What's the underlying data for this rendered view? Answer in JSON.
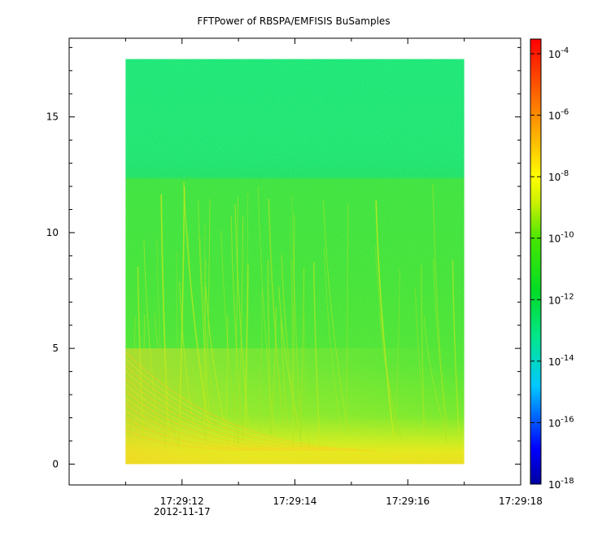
{
  "chart_data": {
    "type": "heatmap",
    "title": "FFTPower of RBSPA/EMFISIS  BuSamples",
    "xlabel": "",
    "ylabel": "",
    "x_axis": {
      "ticks": [
        {
          "label": "17:29:12",
          "value": 12
        },
        {
          "label": "17:29:14",
          "value": 14
        },
        {
          "label": "17:29:16",
          "value": 16
        },
        {
          "label": "17:29:18",
          "value": 18
        }
      ],
      "date_label": "2012-11-17",
      "range": [
        10.0,
        18.0
      ],
      "minor_step": 1
    },
    "y_axis": {
      "ticks": [
        {
          "label": "0",
          "value": 0
        },
        {
          "label": "5",
          "value": 5
        },
        {
          "label": "10",
          "value": 10
        },
        {
          "label": "15",
          "value": 15
        }
      ],
      "range": [
        -0.9,
        18.4
      ],
      "minor_step": 1
    },
    "data_extent": {
      "x": [
        11.0,
        17.0
      ],
      "y": [
        0,
        17.5
      ]
    },
    "colorbar": {
      "scale": "log",
      "range": [
        1e-18,
        0.0003
      ],
      "ticks": [
        {
          "base": "10",
          "exp": "-4",
          "value": -4
        },
        {
          "base": "10",
          "exp": "-6",
          "value": -6
        },
        {
          "base": "10",
          "exp": "-8",
          "value": -8
        },
        {
          "base": "10",
          "exp": "-10",
          "value": -10
        },
        {
          "base": "10",
          "exp": "-12",
          "value": -12
        },
        {
          "base": "10",
          "exp": "-14",
          "value": -14
        },
        {
          "base": "10",
          "exp": "-16",
          "value": -16
        },
        {
          "base": "10",
          "exp": "-18",
          "value": -18
        }
      ],
      "colors": [
        "#0000a0",
        "#0000ff",
        "#00c8ff",
        "#00e68c",
        "#00dc28",
        "#46e600",
        "#c8f000",
        "#ffff00",
        "#ffb400",
        "#ff5a00",
        "#ff0000"
      ]
    },
    "grid": false,
    "legend": "colorbar-right"
  }
}
